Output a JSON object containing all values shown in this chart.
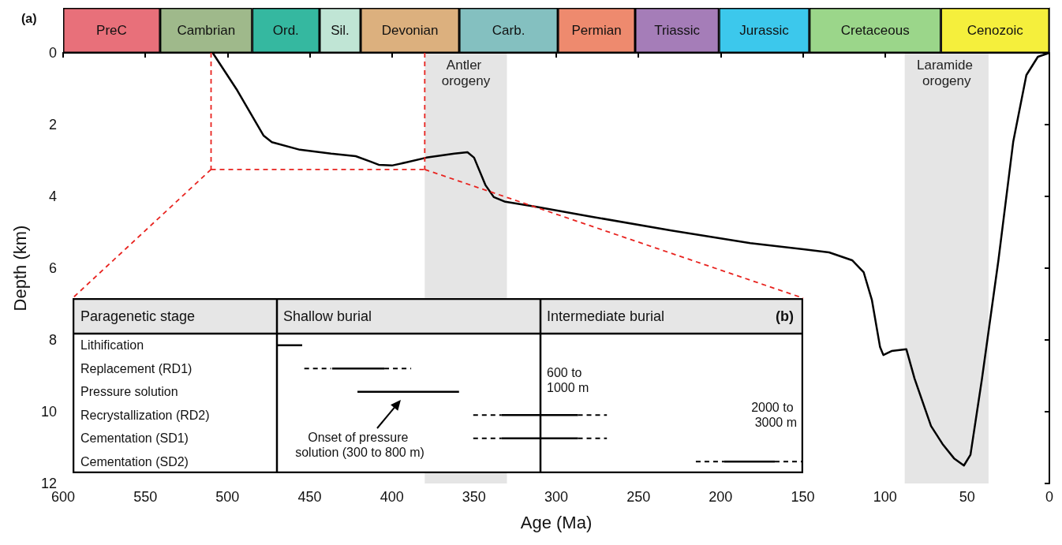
{
  "chart_data": [
    {
      "type": "bar",
      "orientation": "horizontal",
      "stacked": true,
      "categories": [
        null
      ],
      "xlim": [
        600,
        0
      ],
      "series": [
        {
          "name": "Cenozoic",
          "color": "#f5ef3c",
          "values": [
            66
          ]
        },
        {
          "name": "Cretaceous",
          "color": "#9bd68a",
          "values": [
            80
          ]
        },
        {
          "name": "Jurassic",
          "color": "#3cc8ec",
          "values": [
            55
          ]
        },
        {
          "name": "Triassic",
          "color": "#a57db8",
          "values": [
            51
          ]
        },
        {
          "name": "Permian",
          "color": "#ee8a6e",
          "values": [
            47
          ]
        },
        {
          "name": "Carb.",
          "color": "#84c0c0",
          "values": [
            60
          ]
        },
        {
          "name": "Devonian",
          "color": "#dcb07e",
          "values": [
            60
          ]
        },
        {
          "name": "Sil.",
          "color": "#c0e5d5",
          "values": [
            25
          ]
        },
        {
          "name": "Ord.",
          "color": "#35b8a0",
          "values": [
            41
          ]
        },
        {
          "name": "Cambrian",
          "color": "#9fb98b",
          "values": [
            56
          ]
        },
        {
          "name": "PreC",
          "color": "#e8707a",
          "values": [
            59
          ]
        }
      ]
    },
    {
      "type": "line",
      "title": "(a)",
      "xlabel": "Age (Ma)",
      "ylabel": "Depth (km)",
      "color": "#000000",
      "x": [
        509,
        494,
        478,
        473,
        456,
        437,
        422,
        413,
        408,
        400,
        391,
        379,
        362,
        354,
        350,
        343,
        338,
        331,
        312,
        278,
        230,
        182,
        134,
        120,
        113,
        108,
        103,
        101,
        96,
        87,
        82,
        72,
        65,
        58,
        52,
        48,
        41,
        31,
        22,
        14,
        7,
        0
      ],
      "values": [
        0,
        1.05,
        2.31,
        2.49,
        2.7,
        2.81,
        2.88,
        3.03,
        3.12,
        3.14,
        3.05,
        2.92,
        2.81,
        2.77,
        2.92,
        3.69,
        4.02,
        4.15,
        4.29,
        4.57,
        4.95,
        5.3,
        5.56,
        5.78,
        6.11,
        6.88,
        8.2,
        8.42,
        8.31,
        8.26,
        9.08,
        10.4,
        10.9,
        11.3,
        11.5,
        11.2,
        9.08,
        5.78,
        2.48,
        0.62,
        0.11,
        0
      ],
      "xlim": [
        600,
        0
      ],
      "xticks": [
        600,
        550,
        500,
        450,
        400,
        350,
        300,
        250,
        200,
        150,
        100,
        50,
        0
      ],
      "ylim": [
        12,
        0
      ],
      "yticks": [
        0,
        2,
        4,
        6,
        8,
        10,
        12
      ],
      "bands": [
        {
          "axis": "x",
          "from": 380,
          "to": 330,
          "label": "Antler orogeny",
          "color": "#e5e5e5"
        },
        {
          "axis": "x",
          "from": 88,
          "to": 37,
          "label": "Laramide orogeny",
          "color": "#e5e5e5"
        }
      ],
      "ref_lines": [
        {
          "axis": "x",
          "value": 510,
          "color": "#e8231f",
          "line_style": "dashed"
        },
        {
          "axis": "x",
          "value": 380,
          "color": "#e8231f",
          "line_style": "dashed"
        },
        {
          "axis": "y",
          "value": 3.25,
          "color": "#e8231f",
          "line_style": "dashed"
        }
      ]
    },
    {
      "type": "other",
      "title": "(b)",
      "ylabel": "Paragenetic stage",
      "categories": [
        "Lithification",
        "Replacement (RD1)",
        "Pressure solution",
        "Recrystallization (RD2)",
        "Cementation (SD1)",
        "Cementation (SD2)"
      ],
      "annotations": [
        "Shallow burial",
        "Intermediate burial",
        "600 to 1000 m",
        "2000 to 3000 m",
        "Onset of pressure solution (300 to 800 m)"
      ]
    }
  ]
}
